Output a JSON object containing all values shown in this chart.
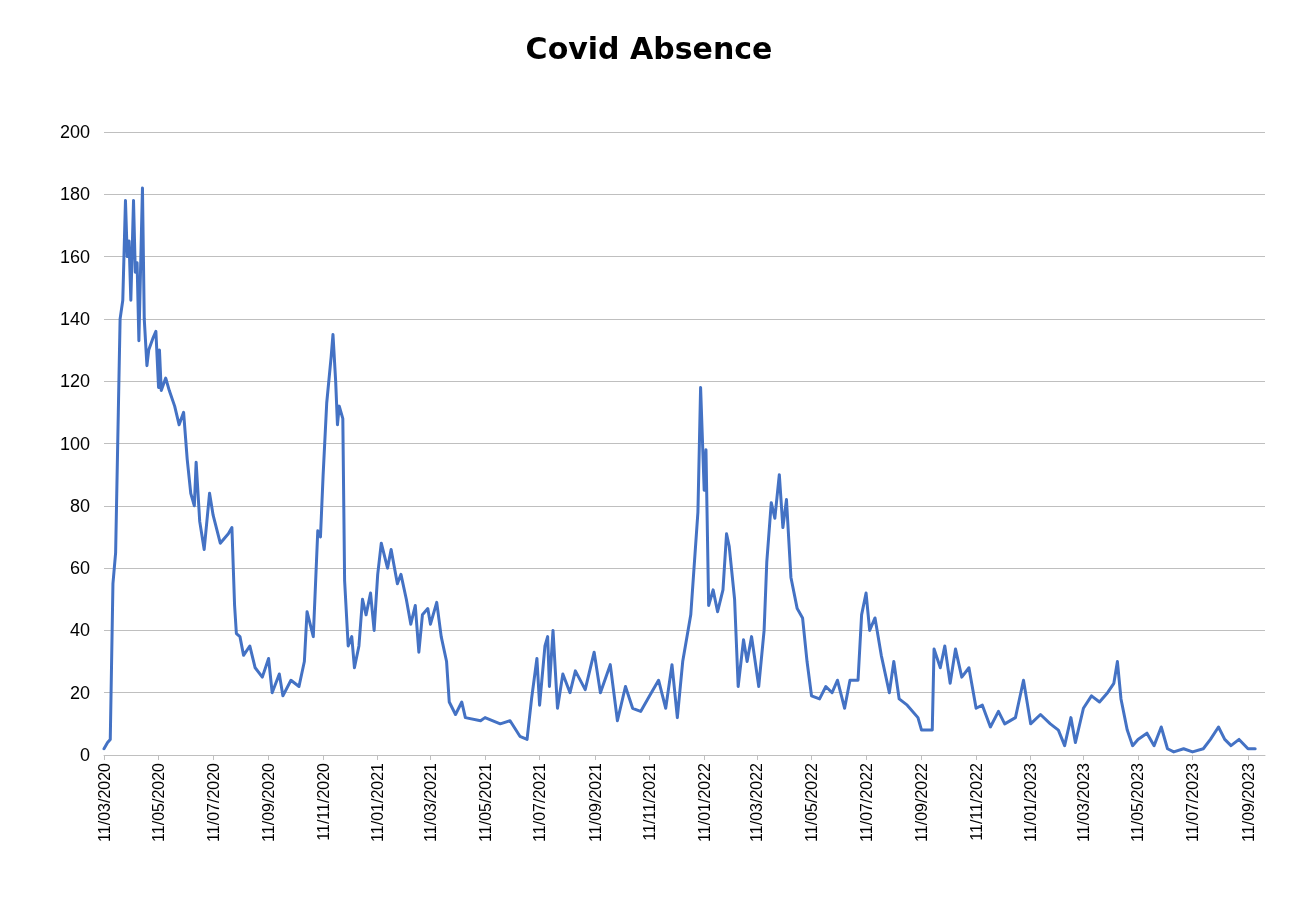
{
  "chart_data": {
    "type": "line",
    "title": "Covid Absence",
    "color": "#4472c4",
    "grid": "y",
    "marker": "none",
    "line_style": "solid",
    "xlim": [
      "2020-03-11",
      "2023-09-30"
    ],
    "xticks": [
      {
        "value": "2020-03-11",
        "label": "11/03/2020"
      },
      {
        "value": "2020-05-11",
        "label": "11/05/2020"
      },
      {
        "value": "2020-07-11",
        "label": "11/07/2020"
      },
      {
        "value": "2020-09-11",
        "label": "11/09/2020"
      },
      {
        "value": "2020-11-11",
        "label": "11/11/2020"
      },
      {
        "value": "2021-01-11",
        "label": "11/01/2021"
      },
      {
        "value": "2021-03-11",
        "label": "11/03/2021"
      },
      {
        "value": "2021-05-11",
        "label": "11/05/2021"
      },
      {
        "value": "2021-07-11",
        "label": "11/07/2021"
      },
      {
        "value": "2021-09-11",
        "label": "11/09/2021"
      },
      {
        "value": "2021-11-11",
        "label": "11/11/2021"
      },
      {
        "value": "2022-01-11",
        "label": "11/01/2022"
      },
      {
        "value": "2022-03-11",
        "label": "11/03/2022"
      },
      {
        "value": "2022-05-11",
        "label": "11/05/2022"
      },
      {
        "value": "2022-07-11",
        "label": "11/07/2022"
      },
      {
        "value": "2022-09-11",
        "label": "11/09/2022"
      },
      {
        "value": "2022-11-11",
        "label": "11/11/2022"
      },
      {
        "value": "2023-01-11",
        "label": "11/01/2023"
      },
      {
        "value": "2023-03-11",
        "label": "11/03/2023"
      },
      {
        "value": "2023-05-11",
        "label": "11/05/2023"
      },
      {
        "value": "2023-07-11",
        "label": "11/07/2023"
      },
      {
        "value": "2023-09-11",
        "label": "11/09/2023"
      }
    ],
    "ylim": [
      0,
      200
    ],
    "yticks": [
      0,
      20,
      40,
      60,
      80,
      100,
      120,
      140,
      160,
      180,
      200
    ],
    "x": [
      "2020-03-11",
      "2020-03-15",
      "2020-03-18",
      "2020-03-21",
      "2020-03-24",
      "2020-03-27",
      "2020-03-29",
      "2020-04-01",
      "2020-04-04",
      "2020-04-06",
      "2020-04-08",
      "2020-04-10",
      "2020-04-13",
      "2020-04-15",
      "2020-04-17",
      "2020-04-19",
      "2020-04-23",
      "2020-04-25",
      "2020-04-28",
      "2020-04-30",
      "2020-05-05",
      "2020-05-08",
      "2020-05-11",
      "2020-05-12",
      "2020-05-14",
      "2020-05-19",
      "2020-05-23",
      "2020-05-29",
      "2020-06-03",
      "2020-06-08",
      "2020-06-12",
      "2020-06-16",
      "2020-06-20",
      "2020-06-22",
      "2020-06-26",
      "2020-07-01",
      "2020-07-07",
      "2020-07-11",
      "2020-07-19",
      "2020-07-28",
      "2020-08-01",
      "2020-08-04",
      "2020-08-06",
      "2020-08-10",
      "2020-08-14",
      "2020-08-21",
      "2020-08-27",
      "2020-09-04",
      "2020-09-11",
      "2020-09-15",
      "2020-09-23",
      "2020-09-27",
      "2020-10-06",
      "2020-10-15",
      "2020-10-21",
      "2020-10-24",
      "2020-10-31",
      "2020-11-05",
      "2020-11-08",
      "2020-11-11",
      "2020-11-15",
      "2020-11-20",
      "2020-11-22",
      "2020-11-25",
      "2020-11-27",
      "2020-11-29",
      "2020-12-03",
      "2020-12-05",
      "2020-12-09",
      "2020-12-13",
      "2020-12-16",
      "2020-12-21",
      "2020-12-25",
      "2020-12-29",
      "2021-01-03",
      "2021-01-07",
      "2021-01-11",
      "2021-01-15",
      "2021-01-22",
      "2021-01-26",
      "2021-02-02",
      "2021-02-06",
      "2021-02-12",
      "2021-02-17",
      "2021-02-22",
      "2021-02-26",
      "2021-03-02",
      "2021-03-08",
      "2021-03-11",
      "2021-03-18",
      "2021-03-23",
      "2021-03-29",
      "2021-04-01",
      "2021-04-08",
      "2021-04-15",
      "2021-04-19",
      "2021-05-06",
      "2021-05-11",
      "2021-05-28",
      "2021-06-08",
      "2021-06-19",
      "2021-06-27",
      "2021-07-02",
      "2021-07-08",
      "2021-07-11",
      "2021-07-17",
      "2021-07-20",
      "2021-07-22",
      "2021-07-26",
      "2021-07-31",
      "2021-08-06",
      "2021-08-14",
      "2021-08-20",
      "2021-08-31",
      "2021-09-10",
      "2021-09-17",
      "2021-09-28",
      "2021-10-06",
      "2021-10-15",
      "2021-10-23",
      "2021-11-01",
      "2021-11-11",
      "2021-11-21",
      "2021-11-29",
      "2021-12-06",
      "2021-12-12",
      "2021-12-18",
      "2021-12-27",
      "2022-01-04",
      "2022-01-07",
      "2022-01-11",
      "2022-01-13",
      "2022-01-16",
      "2022-01-21",
      "2022-01-26",
      "2022-02-01",
      "2022-02-05",
      "2022-02-08",
      "2022-02-14",
      "2022-02-18",
      "2022-02-24",
      "2022-02-28",
      "2022-03-05",
      "2022-03-08",
      "2022-03-13",
      "2022-03-19",
      "2022-03-22",
      "2022-03-27",
      "2022-03-31",
      "2022-04-05",
      "2022-04-09",
      "2022-04-13",
      "2022-04-18",
      "2022-04-25",
      "2022-05-01",
      "2022-05-06",
      "2022-05-11",
      "2022-05-20",
      "2022-05-27",
      "2022-06-03",
      "2022-06-09",
      "2022-06-17",
      "2022-06-23",
      "2022-07-02",
      "2022-07-06",
      "2022-07-11",
      "2022-07-15",
      "2022-07-21",
      "2022-07-28",
      "2022-08-06",
      "2022-08-11",
      "2022-08-17",
      "2022-08-26",
      "2022-09-07",
      "2022-09-11",
      "2022-09-16",
      "2022-09-23",
      "2022-09-25",
      "2022-10-02",
      "2022-10-07",
      "2022-10-13",
      "2022-10-19",
      "2022-10-26",
      "2022-11-03",
      "2022-11-11",
      "2022-11-18",
      "2022-11-27",
      "2022-12-06",
      "2022-12-13",
      "2022-12-25",
      "2023-01-03",
      "2023-01-11",
      "2023-01-22",
      "2023-02-02",
      "2023-02-11",
      "2023-02-18",
      "2023-02-25",
      "2023-03-02",
      "2023-03-11",
      "2023-03-20",
      "2023-03-29",
      "2023-04-07",
      "2023-04-14",
      "2023-04-18",
      "2023-04-22",
      "2023-04-29",
      "2023-05-05",
      "2023-05-11",
      "2023-05-21",
      "2023-05-29",
      "2023-06-06",
      "2023-06-13",
      "2023-06-20",
      "2023-07-01",
      "2023-07-11",
      "2023-07-23",
      "2023-07-31",
      "2023-08-09",
      "2023-08-16",
      "2023-08-23",
      "2023-09-01",
      "2023-09-11",
      "2023-09-19"
    ],
    "values": [
      2,
      4,
      5,
      55,
      65,
      110,
      140,
      146,
      178,
      160,
      165,
      146,
      178,
      155,
      158,
      133,
      182,
      140,
      125,
      130,
      134,
      136,
      118,
      130,
      117,
      121,
      117,
      112,
      106,
      110,
      95,
      84,
      80,
      94,
      75,
      66,
      84,
      77,
      68,
      71,
      73,
      48,
      39,
      38,
      32,
      35,
      28,
      25,
      31,
      20,
      26,
      19,
      24,
      22,
      30,
      46,
      38,
      72,
      70,
      90,
      113,
      128,
      135,
      120,
      106,
      112,
      108,
      56,
      35,
      38,
      28,
      35,
      50,
      45,
      52,
      40,
      58,
      68,
      60,
      66,
      55,
      58,
      50,
      42,
      48,
      33,
      45,
      47,
      42,
      49,
      38,
      30,
      17,
      13,
      17,
      12,
      11,
      12,
      10,
      11,
      6,
      5,
      18,
      31,
      16,
      35,
      38,
      22,
      40,
      15,
      26,
      20,
      27,
      21,
      33,
      20,
      29,
      11,
      22,
      15,
      14,
      19,
      24,
      15,
      29,
      12,
      30,
      45,
      78,
      118,
      85,
      98,
      48,
      53,
      46,
      53,
      71,
      67,
      50,
      22,
      37,
      30,
      38,
      32,
      22,
      40,
      62,
      81,
      76,
      90,
      73,
      82,
      57,
      47,
      44,
      30,
      19,
      18,
      22,
      20,
      24,
      15,
      24,
      24,
      45,
      52,
      40,
      44,
      32,
      20,
      30,
      18,
      16,
      12,
      8,
      8,
      8,
      34,
      28,
      35,
      23,
      34,
      25,
      28,
      15,
      16,
      9,
      14,
      10,
      12,
      24,
      10,
      13,
      10,
      8,
      3,
      12,
      4,
      15,
      19,
      17,
      20,
      23,
      30,
      18,
      8,
      3,
      5,
      7,
      3,
      9,
      2,
      1,
      2,
      1,
      2,
      5,
      9,
      5,
      3,
      5,
      2,
      2
    ]
  }
}
